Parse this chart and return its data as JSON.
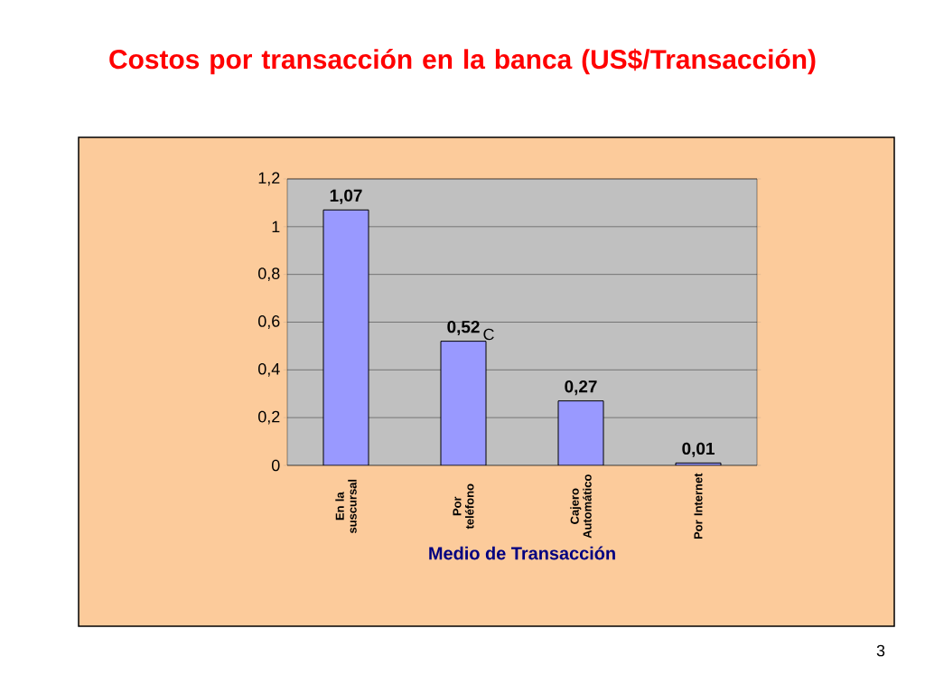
{
  "chart_data": {
    "type": "bar",
    "title": "Costos por transacción en la banca (US$/Transacción)",
    "xlabel": "Medio de Transacción",
    "categories": [
      "En la suscursal",
      "Por teléfono",
      "Cajero Automático",
      "Por Internet"
    ],
    "values": [
      1.07,
      0.52,
      0.27,
      0.01
    ],
    "value_labels": [
      "1,07",
      "0,52",
      "0,27",
      "0,01"
    ],
    "color": "#9999ff",
    "ylim": [
      0,
      1.2
    ],
    "yticks": [
      {
        "value": 0,
        "label": "0"
      },
      {
        "value": 0.2,
        "label": "0,2"
      },
      {
        "value": 0.4,
        "label": "0,4"
      },
      {
        "value": 0.6,
        "label": "0,6"
      },
      {
        "value": 0.8,
        "label": "0,8"
      },
      {
        "value": 1,
        "label": "1"
      },
      {
        "value": 1.2,
        "label": "1,2"
      }
    ],
    "grid": "y",
    "annotations": [
      "C",
      "3"
    ]
  }
}
